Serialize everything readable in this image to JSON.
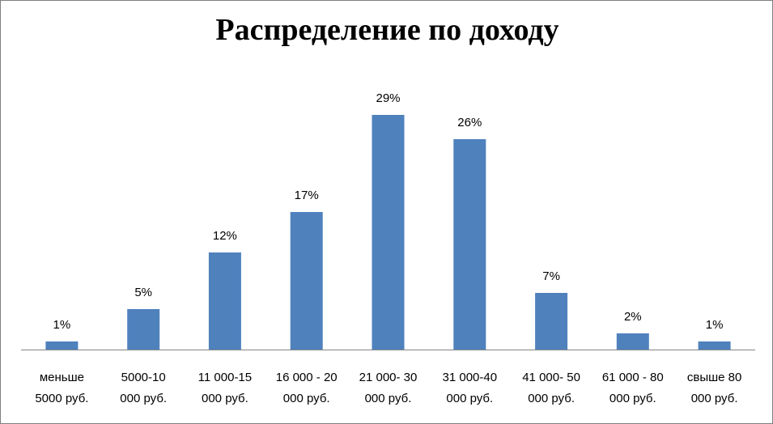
{
  "chart_data": {
    "type": "bar",
    "title": "Распределение по доходу",
    "categories": [
      [
        "меньше",
        "5000 руб."
      ],
      [
        "5000-10",
        "000 руб."
      ],
      [
        "11 000-15",
        "000 руб."
      ],
      [
        "16 000 - 20",
        "000 руб."
      ],
      [
        "21 000- 30",
        "000 руб."
      ],
      [
        "31 000-40",
        "000 руб."
      ],
      [
        "41 000- 50",
        "000 руб."
      ],
      [
        "61 000 - 80",
        "000 руб."
      ],
      [
        "свыше 80",
        "000 руб."
      ]
    ],
    "values": [
      1,
      5,
      12,
      17,
      29,
      26,
      7,
      2,
      1
    ],
    "data_labels": [
      "1%",
      "5%",
      "12%",
      "17%",
      "29%",
      "26%",
      "7%",
      "2%",
      "1%"
    ],
    "bar_color": "#4f81bd",
    "grid": false,
    "legend": "none"
  }
}
